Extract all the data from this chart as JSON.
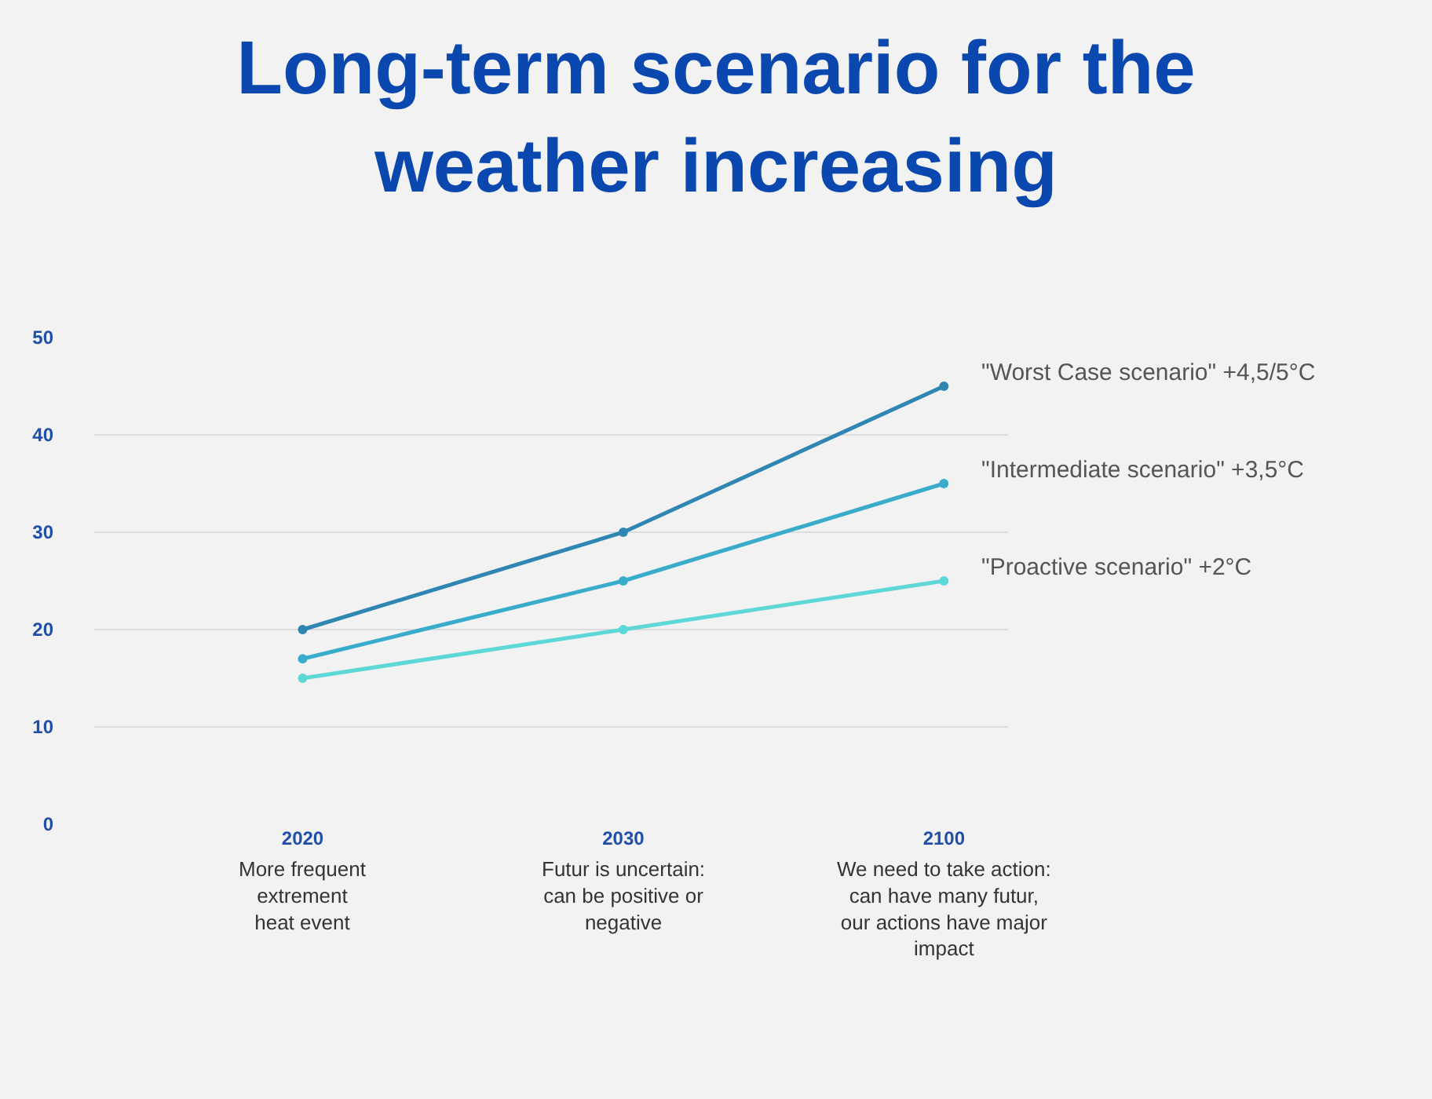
{
  "chart_data": {
    "type": "line",
    "title": "Long-term scenario for the\nweather increasing",
    "categories": [
      "2020",
      "2030",
      "2100"
    ],
    "series": [
      {
        "name": "\"Worst Case scenario\" +4,5/5°C",
        "color": "#2f86b3",
        "values": [
          20,
          30,
          45
        ]
      },
      {
        "name": "\"Intermediate scenario\" +3,5°C",
        "color": "#3aaccb",
        "values": [
          17,
          25,
          35
        ]
      },
      {
        "name": "\"Proactive scenario\" +2°C",
        "color": "#5ed8d6",
        "values": [
          15,
          20,
          25
        ]
      }
    ],
    "annotations": [
      "More frequent\nextrement\nheat event",
      "Futur is uncertain:\ncan be positive or\nnegative",
      "We need to take action:\ncan have many futur,\nour actions have major\nimpact"
    ],
    "ylim": [
      0,
      50
    ],
    "yticks": [
      0,
      10,
      20,
      30,
      40,
      50
    ],
    "grid": "y",
    "marker": "circle",
    "line_style": "solid",
    "legend": false
  }
}
